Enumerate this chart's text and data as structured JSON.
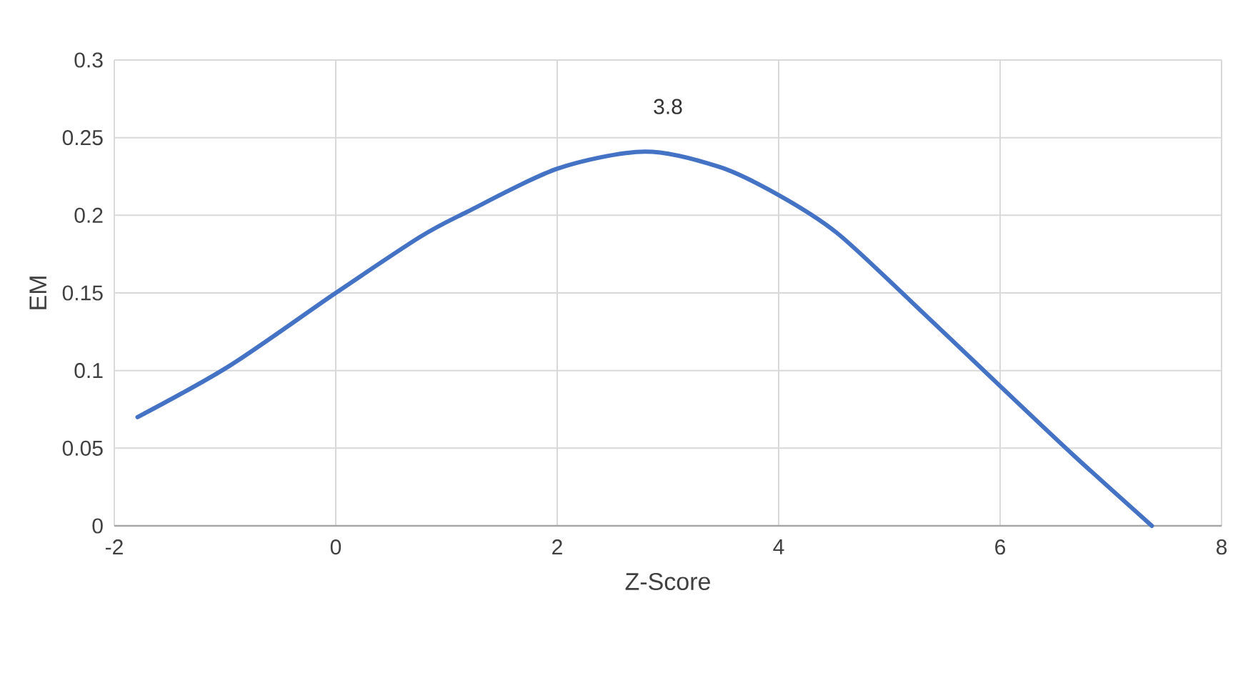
{
  "chart_data": {
    "type": "line",
    "xlabel": "Z-Score",
    "ylabel": "EM",
    "annotations": [
      "3.8"
    ],
    "series": [
      {
        "color": "#4472c4",
        "x": [
          -1.79,
          -0.96,
          0,
          0.76,
          1.18,
          2,
          2.79,
          3.47,
          4,
          4.52,
          5.13,
          6,
          6.67,
          7.37
        ],
        "values": [
          0.07,
          0.103,
          0.15,
          0.186,
          0.202,
          0.23,
          0.241,
          0.231,
          0.213,
          0.189,
          0.149,
          0.09,
          0.045,
          0
        ]
      }
    ],
    "xlim": [
      -2,
      8
    ],
    "xticks": [
      -2,
      0,
      2,
      4,
      6,
      8
    ],
    "ylim": [
      0,
      0.3
    ],
    "yticks": [
      0,
      0.05,
      0.1,
      0.15,
      0.2,
      0.25,
      0.3
    ],
    "grid": true
  }
}
